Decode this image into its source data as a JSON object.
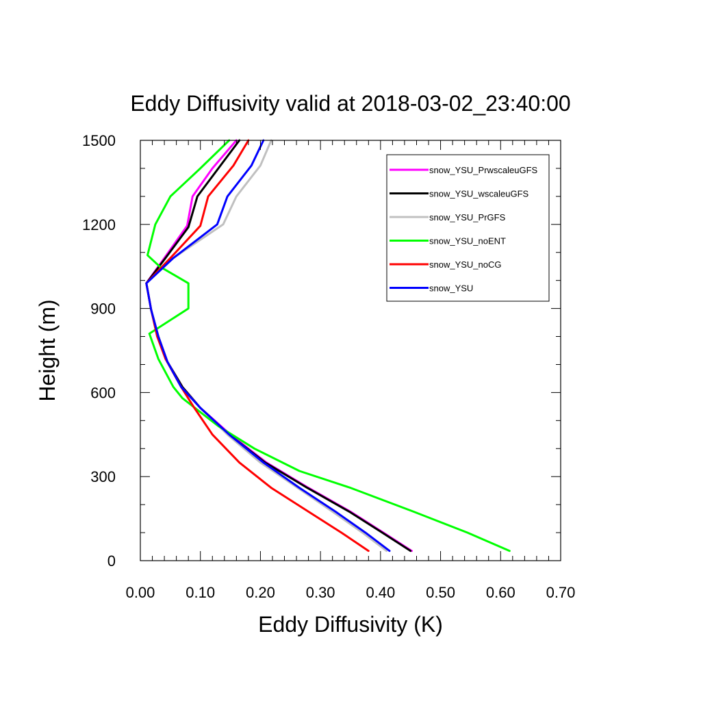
{
  "chart_data": {
    "type": "line",
    "title": "Eddy Diffusivity valid at 2018-03-02_23:40:00",
    "xlabel": "Eddy Diffusivity (K)",
    "ylabel": "Height (m)",
    "xlim": [
      0.0,
      0.7
    ],
    "ylim": [
      0,
      1500
    ],
    "xticks": [
      0.0,
      0.1,
      0.2,
      0.3,
      0.4,
      0.5,
      0.6,
      0.7
    ],
    "xtick_labels": [
      "0.00",
      "0.10",
      "0.20",
      "0.30",
      "0.40",
      "0.50",
      "0.60",
      "0.70"
    ],
    "yticks": [
      0,
      300,
      600,
      900,
      1200,
      1500
    ],
    "ytick_labels": [
      "0",
      "300",
      "600",
      "900",
      "1200",
      "1500"
    ],
    "grid": false,
    "legend_position": "top-right",
    "series": [
      {
        "name": "snow_YSU_PrwscaleuGFS",
        "color": "#ff00ff",
        "points": [
          [
            0.452,
            35
          ],
          [
            0.405,
            100
          ],
          [
            0.35,
            175
          ],
          [
            0.28,
            260
          ],
          [
            0.21,
            350
          ],
          [
            0.15,
            450
          ],
          [
            0.1,
            545
          ],
          [
            0.07,
            620
          ],
          [
            0.045,
            710
          ],
          [
            0.03,
            800
          ],
          [
            0.018,
            895
          ],
          [
            0.01,
            990
          ],
          [
            0.04,
            1080
          ],
          [
            0.078,
            1195
          ],
          [
            0.087,
            1300
          ],
          [
            0.12,
            1400
          ],
          [
            0.16,
            1500
          ]
        ]
      },
      {
        "name": "snow_YSU_wscaleuGFS",
        "color": "#000000",
        "points": [
          [
            0.45,
            35
          ],
          [
            0.403,
            100
          ],
          [
            0.348,
            175
          ],
          [
            0.278,
            260
          ],
          [
            0.208,
            350
          ],
          [
            0.148,
            450
          ],
          [
            0.1,
            545
          ],
          [
            0.07,
            620
          ],
          [
            0.045,
            710
          ],
          [
            0.03,
            800
          ],
          [
            0.018,
            895
          ],
          [
            0.01,
            990
          ],
          [
            0.042,
            1080
          ],
          [
            0.08,
            1190
          ],
          [
            0.095,
            1300
          ],
          [
            0.13,
            1400
          ],
          [
            0.165,
            1500
          ]
        ]
      },
      {
        "name": "snow_YSU_PrGFS",
        "color": "#c0c0c0",
        "points": [
          [
            0.41,
            35
          ],
          [
            0.37,
            100
          ],
          [
            0.32,
            175
          ],
          [
            0.262,
            260
          ],
          [
            0.2,
            350
          ],
          [
            0.145,
            450
          ],
          [
            0.1,
            545
          ],
          [
            0.068,
            620
          ],
          [
            0.045,
            710
          ],
          [
            0.03,
            800
          ],
          [
            0.018,
            895
          ],
          [
            0.01,
            990
          ],
          [
            0.055,
            1080
          ],
          [
            0.138,
            1200
          ],
          [
            0.16,
            1300
          ],
          [
            0.2,
            1410
          ],
          [
            0.218,
            1500
          ]
        ]
      },
      {
        "name": "snow_YSU_noENT",
        "color": "#00ff00",
        "points": [
          [
            0.615,
            35
          ],
          [
            0.545,
            100
          ],
          [
            0.455,
            175
          ],
          [
            0.35,
            260
          ],
          [
            0.265,
            320
          ],
          [
            0.19,
            400
          ],
          [
            0.13,
            480
          ],
          [
            0.1,
            530
          ],
          [
            0.07,
            580
          ],
          [
            0.055,
            620
          ],
          [
            0.03,
            720
          ],
          [
            0.015,
            810
          ],
          [
            0.08,
            900
          ],
          [
            0.08,
            990
          ],
          [
            0.032,
            1050
          ],
          [
            0.012,
            1090
          ],
          [
            0.025,
            1200
          ],
          [
            0.05,
            1300
          ],
          [
            0.1,
            1400
          ],
          [
            0.148,
            1500
          ]
        ]
      },
      {
        "name": "snow_YSU_noCG",
        "color": "#ff0000",
        "points": [
          [
            0.38,
            35
          ],
          [
            0.335,
            100
          ],
          [
            0.28,
            175
          ],
          [
            0.218,
            260
          ],
          [
            0.165,
            350
          ],
          [
            0.12,
            450
          ],
          [
            0.09,
            545
          ],
          [
            0.068,
            620
          ],
          [
            0.042,
            720
          ],
          [
            0.028,
            800
          ],
          [
            0.018,
            895
          ],
          [
            0.01,
            990
          ],
          [
            0.05,
            1080
          ],
          [
            0.1,
            1195
          ],
          [
            0.113,
            1300
          ],
          [
            0.155,
            1410
          ],
          [
            0.18,
            1500
          ]
        ]
      },
      {
        "name": "snow_YSU",
        "color": "#0000ff",
        "points": [
          [
            0.415,
            35
          ],
          [
            0.375,
            100
          ],
          [
            0.325,
            175
          ],
          [
            0.265,
            260
          ],
          [
            0.205,
            350
          ],
          [
            0.148,
            450
          ],
          [
            0.1,
            545
          ],
          [
            0.068,
            620
          ],
          [
            0.045,
            710
          ],
          [
            0.03,
            800
          ],
          [
            0.018,
            895
          ],
          [
            0.01,
            990
          ],
          [
            0.055,
            1080
          ],
          [
            0.128,
            1200
          ],
          [
            0.145,
            1300
          ],
          [
            0.185,
            1410
          ],
          [
            0.205,
            1500
          ]
        ]
      }
    ]
  }
}
